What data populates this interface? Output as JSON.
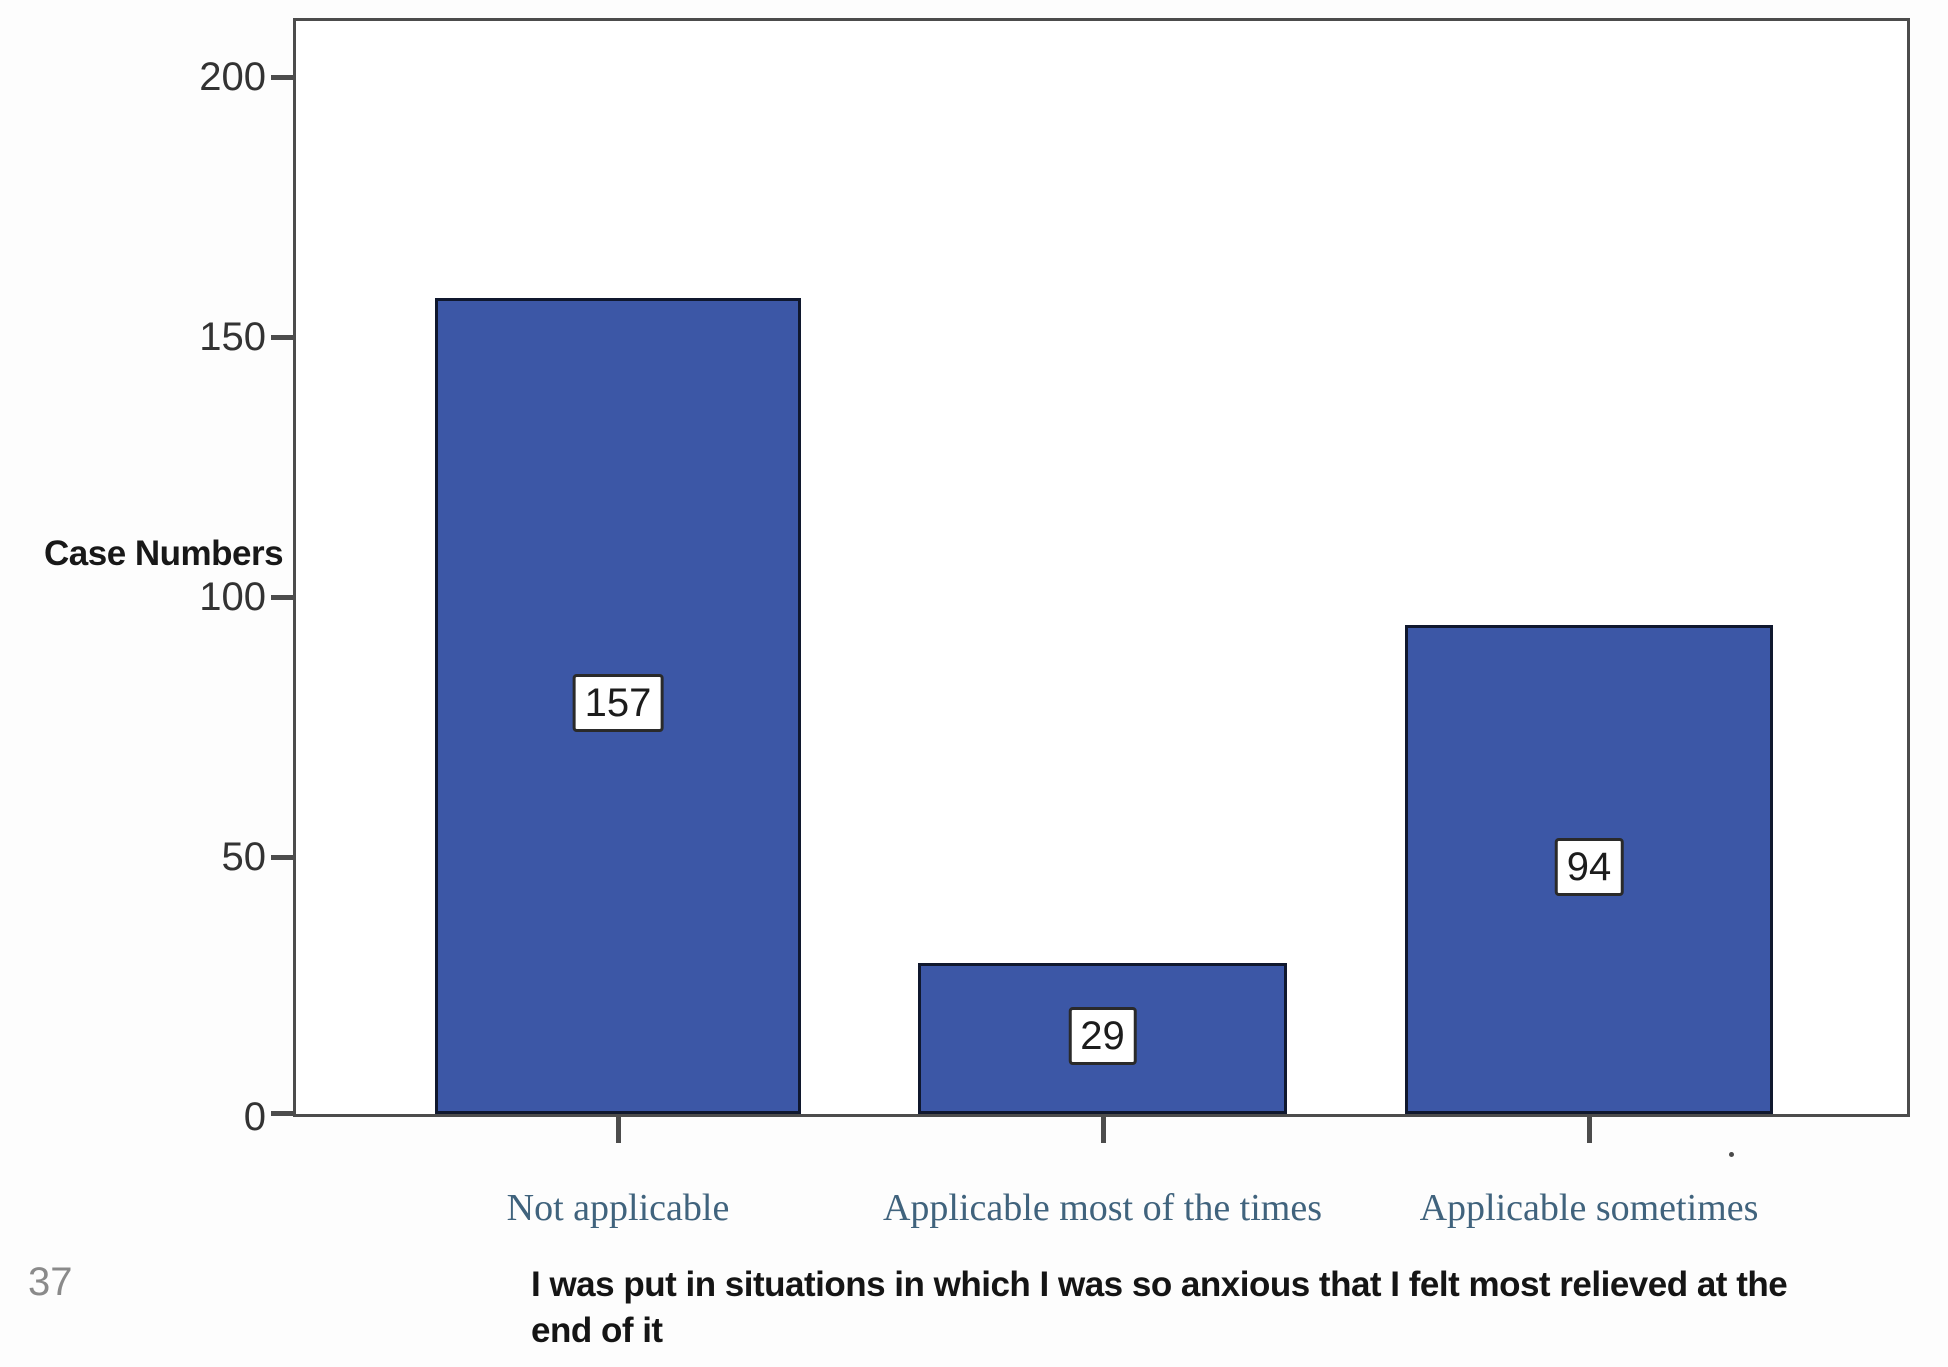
{
  "chart_data": {
    "type": "bar",
    "title": "",
    "categories": [
      "Not applicable",
      "Applicable most of the times",
      "Applicable sometimes"
    ],
    "values": [
      157,
      29,
      94
    ],
    "value_labels": [
      "157",
      "29",
      "94"
    ],
    "ylabel": "Case Numbers",
    "xlabel": "I was put in situations in which I was so anxious that I felt most relieved at the end of it",
    "xlabel_lines": [
      "I was put in situations in which I was so anxious that I felt most relieved at the",
      "end of it"
    ],
    "ylim": [
      0,
      200
    ],
    "yticks": [
      0,
      50,
      100,
      150,
      200
    ],
    "grid": "off",
    "legend": "none",
    "colors": {
      "bar_fill": "#3c57a6",
      "bar_border": "#10182e",
      "frame": "#4c4c4c",
      "tick": "#4c4c4c",
      "y_tick_label": "#333333",
      "category_label": "#40637d",
      "axis_title": "#151515",
      "value_label_text": "#1c1c1c",
      "value_label_border": "#2a2a2a",
      "value_label_bg": "#ffffff"
    }
  },
  "page": {
    "number": "37",
    "background": "#fdfdfd"
  }
}
